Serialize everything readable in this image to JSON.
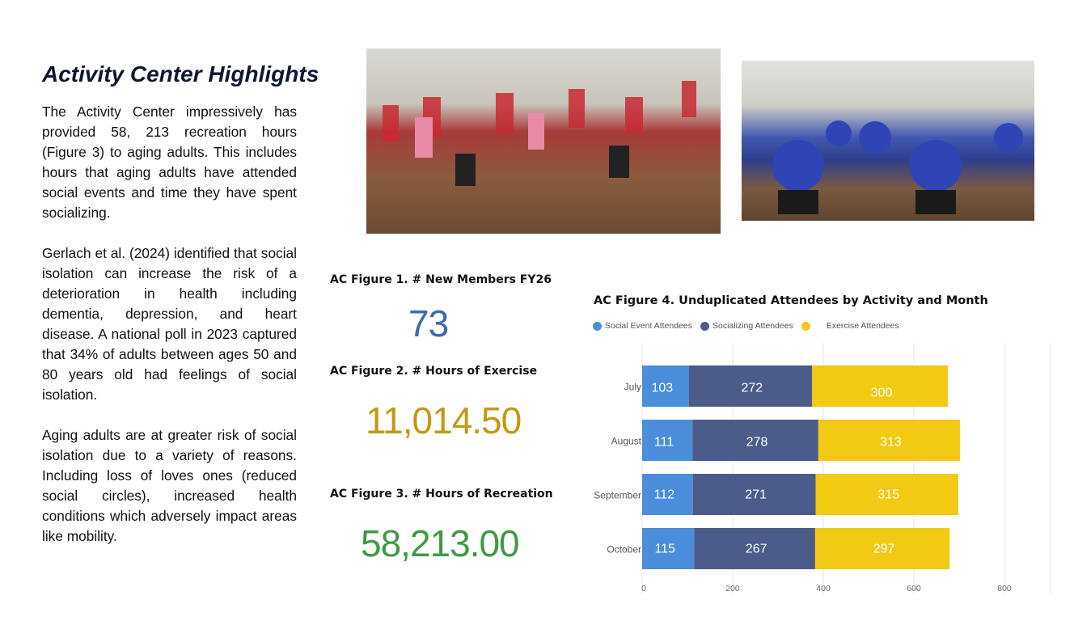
{
  "title": "Activity Center Highlights",
  "paragraphs": [
    "The Activity Center impressively has provided 58, 213 recreation hours (Figure 3) to aging adults. This includes hours that aging adults have attended social events and time they have spent socializing.",
    "Gerlach et al. (2024) identified that social isolation can increase the risk of a deterioration in health including dementia, depression, and heart disease. A national poll in 2023 captured that 34% of adults between ages 50 and 80 years old had feelings of social isolation.",
    "Aging adults are at greater risk of social isolation due to a variety of reasons. Including loss of loves ones (reduced social circles), increased health conditions which adversely impact areas like mobility."
  ],
  "figures": [
    {
      "label": "AC Figure 1. # New Members FY26",
      "value": "73",
      "color": "#3a6db0"
    },
    {
      "label": "AC Figure 2. # Hours of Exercise",
      "value": "11,014.50",
      "color": "#bf9b14"
    },
    {
      "label": "AC Figure 3. # Hours of Recreation",
      "value": "58,213.00",
      "color": "#3f9a45"
    }
  ],
  "chart_data": {
    "type": "bar",
    "orientation": "horizontal",
    "stacked": true,
    "title": "AC Figure 4. Unduplicated Attendees by Activity and Month",
    "categories": [
      "July",
      "August",
      "September",
      "October"
    ],
    "series": [
      {
        "name": "Social Event Attendees",
        "values": [
          103,
          111,
          112,
          115
        ],
        "color": "#4a8edb"
      },
      {
        "name": "Socializing Attendees",
        "values": [
          272,
          278,
          271,
          267
        ],
        "color": "#4b5b8a"
      },
      {
        "name": "Exercise Attendees",
        "values": [
          300,
          313,
          315,
          297
        ],
        "color": "#f2c913"
      }
    ],
    "xlim": [
      0,
      800
    ],
    "xticks": [
      "0",
      "200",
      "400",
      "600",
      "800"
    ],
    "grid": true,
    "legend": "top-left",
    "data_labels": true
  }
}
